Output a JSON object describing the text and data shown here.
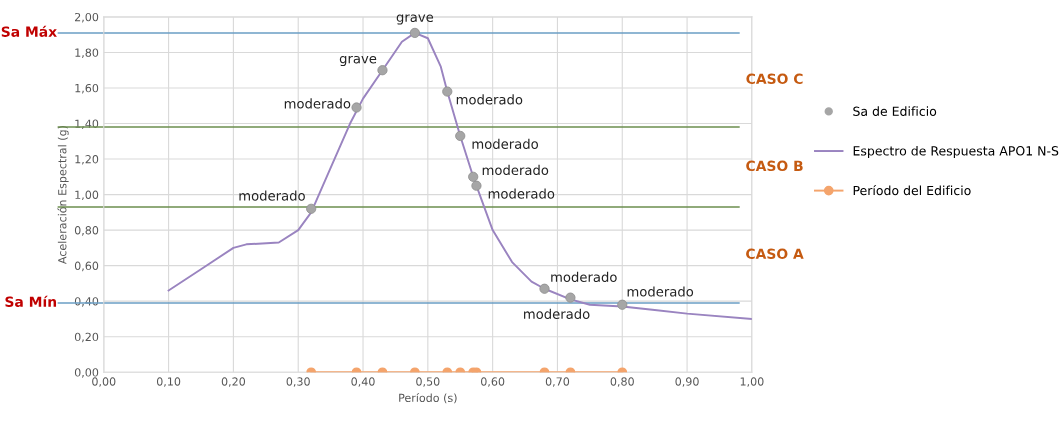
{
  "chart_data": {
    "type": "scatter",
    "xlabel": "Período (s)",
    "ylabel": "Aceleración Espectral (g)",
    "xlim": [
      0,
      1
    ],
    "ylim": [
      0,
      2
    ],
    "xticks": [
      {
        "value": 0,
        "label": "0,00"
      },
      {
        "value": 0.1,
        "label": "0,10"
      },
      {
        "value": 0.2,
        "label": "0,20"
      },
      {
        "value": 0.3,
        "label": "0,30"
      },
      {
        "value": 0.4,
        "label": "0,40"
      },
      {
        "value": 0.5,
        "label": "0,50"
      },
      {
        "value": 0.6,
        "label": "0,60"
      },
      {
        "value": 0.7,
        "label": "0,70"
      },
      {
        "value": 0.8,
        "label": "0,80"
      },
      {
        "value": 0.9,
        "label": "0,90"
      },
      {
        "value": 1,
        "label": "1,00"
      }
    ],
    "yticks": [
      {
        "value": 0,
        "label": "0,00"
      },
      {
        "value": 0.2,
        "label": "0,20"
      },
      {
        "value": 0.4,
        "label": "0,40"
      },
      {
        "value": 0.6,
        "label": "0,60"
      },
      {
        "value": 0.8,
        "label": "0,80"
      },
      {
        "value": 1,
        "label": "1,00"
      },
      {
        "value": 1.2,
        "label": "1,20"
      },
      {
        "value": 1.4,
        "label": "1,40"
      },
      {
        "value": 1.6,
        "label": "1,60"
      },
      {
        "value": 1.8,
        "label": "1,80"
      },
      {
        "value": 2,
        "label": "2,00"
      }
    ],
    "grid": true,
    "legend": "right",
    "series": [
      {
        "name": "Sa de Edificio",
        "color": "#a6a6a6",
        "marker": "circle",
        "x": [
          0.32,
          0.39,
          0.43,
          0.48,
          0.53,
          0.55,
          0.57,
          0.575,
          0.68,
          0.72,
          0.8
        ],
        "values": [
          0.92,
          1.49,
          1.7,
          1.91,
          1.58,
          1.33,
          1.1,
          1.05,
          0.47,
          0.42,
          0.38
        ],
        "value_labels": [
          "moderado",
          "moderado",
          "grave",
          "grave",
          "moderado",
          "moderado",
          "moderado",
          "moderado",
          "moderado",
          "moderado",
          "moderado"
        ]
      },
      {
        "name": "Espectro de Respuesta APO1 N-S",
        "type": "line",
        "color": "#9a84c0",
        "marker": "none",
        "x": [
          0.1,
          0.15,
          0.2,
          0.22,
          0.27,
          0.3,
          0.32,
          0.35,
          0.38,
          0.4,
          0.43,
          0.46,
          0.48,
          0.5,
          0.52,
          0.53,
          0.55,
          0.57,
          0.6,
          0.63,
          0.66,
          0.68,
          0.72,
          0.75,
          0.8,
          0.85,
          0.9,
          1.0
        ],
        "values": [
          0.46,
          0.58,
          0.7,
          0.72,
          0.73,
          0.8,
          0.9,
          1.15,
          1.4,
          1.54,
          1.7,
          1.86,
          1.91,
          1.88,
          1.72,
          1.58,
          1.33,
          1.1,
          0.8,
          0.62,
          0.51,
          0.47,
          0.41,
          0.38,
          0.37,
          0.35,
          0.33,
          0.3
        ]
      },
      {
        "name": "Período del Edificio",
        "type": "line",
        "color": "#f4a46c",
        "marker": "circle",
        "x": [
          0.32,
          0.39,
          0.43,
          0.48,
          0.53,
          0.55,
          0.57,
          0.575,
          0.68,
          0.72,
          0.8
        ],
        "values": [
          0,
          0,
          0,
          0,
          0,
          0,
          0,
          0,
          0,
          0,
          0
        ]
      }
    ],
    "ref_lines": [
      {
        "axis": "y",
        "value": 1.91,
        "label": "Sa Máx",
        "color": "#6a9ec4"
      },
      {
        "axis": "y",
        "value": 1.38,
        "label": null,
        "color": "#6b8e4e"
      },
      {
        "axis": "y",
        "value": 0.93,
        "label": null,
        "color": "#6b8e4e"
      },
      {
        "axis": "y",
        "value": 0.39,
        "label": "Sa Mín",
        "color": "#6a9ec4"
      }
    ],
    "annotations": [
      "CASO C",
      "CASO B",
      "CASO A"
    ]
  }
}
